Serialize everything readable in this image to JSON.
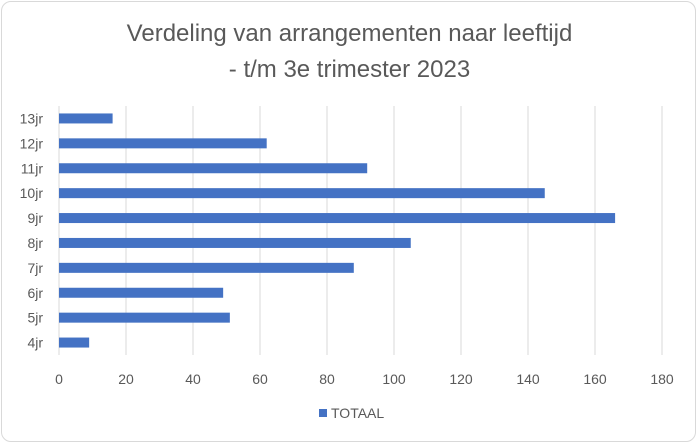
{
  "chart_data": {
    "type": "bar",
    "orientation": "horizontal",
    "title_line1": "Verdeling van arrangementen naar leeftijd",
    "title_line2": "- t/m 3e trimester 2023",
    "categories": [
      "13jr",
      "12jr",
      "11jr",
      "10jr",
      "9jr",
      "8jr",
      "7jr",
      "6jr",
      "5jr",
      "4jr"
    ],
    "series": [
      {
        "name": "TOTAAL",
        "values": [
          16,
          62,
          92,
          145,
          166,
          105,
          88,
          49,
          51,
          9
        ]
      }
    ],
    "xlim": [
      0,
      180
    ],
    "xticks": [
      0,
      20,
      40,
      60,
      80,
      100,
      120,
      140,
      160,
      180
    ],
    "grid": "vertical",
    "legend_position": "bottom",
    "bar_color": "#4472c4",
    "grid_color": "#d9d9d9"
  }
}
